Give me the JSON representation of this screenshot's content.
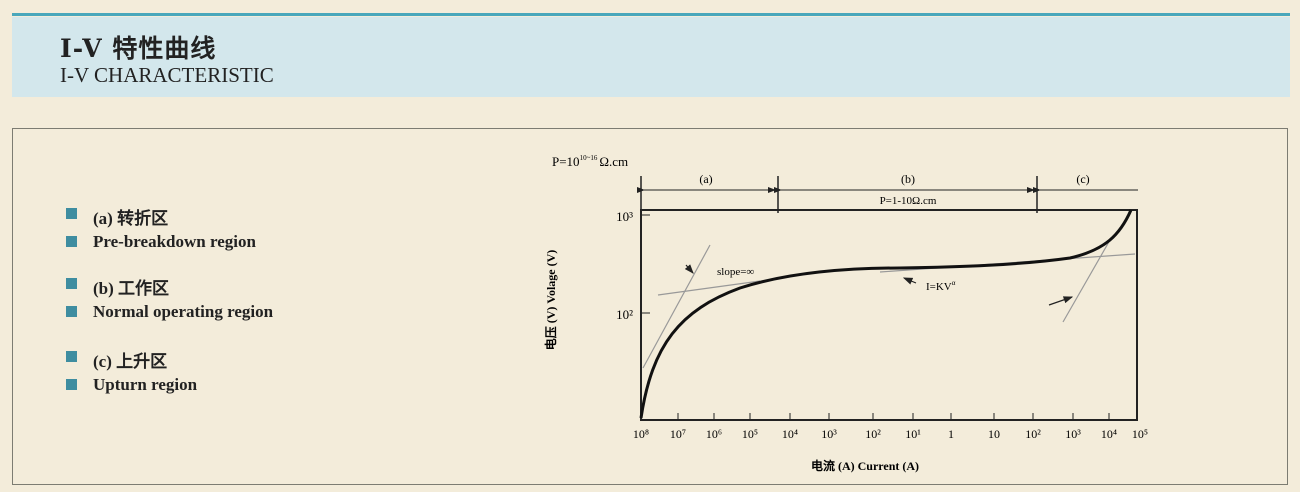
{
  "header": {
    "title_cn": "I-V 特性曲线",
    "title_en": "I-V CHARACTERISTIC"
  },
  "legend": [
    {
      "label": "(a) 转折区"
    },
    {
      "label": "Pre-breakdown region"
    },
    {
      "label": "(b) 工作区"
    },
    {
      "label": "Normal operating region"
    },
    {
      "label": "(c) 上升区"
    },
    {
      "label": "Upturn region"
    }
  ],
  "colors": {
    "accent": "#49a7bb",
    "header_bg": "#d3e7ec",
    "bullet": "#3e8da0",
    "page_bg": "#f3ecda"
  },
  "diagram": {
    "resistivity_label": "P=10",
    "resistivity_exp": "10~16",
    "resistivity_unit": "Ω.cm",
    "regions": [
      {
        "label": "(a)"
      },
      {
        "label": "(b)",
        "sublabel": "P=1-10Ω.cm"
      },
      {
        "label": "(c)"
      }
    ],
    "y_axis_label": "电压 (V) Volage (V)",
    "x_axis_label": "电流 (A) Current (A)",
    "y_ticks": [
      "10³",
      "10²"
    ],
    "x_ticks": [
      "10⁸",
      "10⁷",
      "10⁶",
      "10⁵",
      "10⁴",
      "10³",
      "10²",
      "10¹",
      "1",
      "10",
      "10²",
      "10³",
      "10⁴",
      "10⁵"
    ],
    "annotations": {
      "slope": "slope=∞",
      "law": "I=KV",
      "law_exp": "α"
    }
  }
}
